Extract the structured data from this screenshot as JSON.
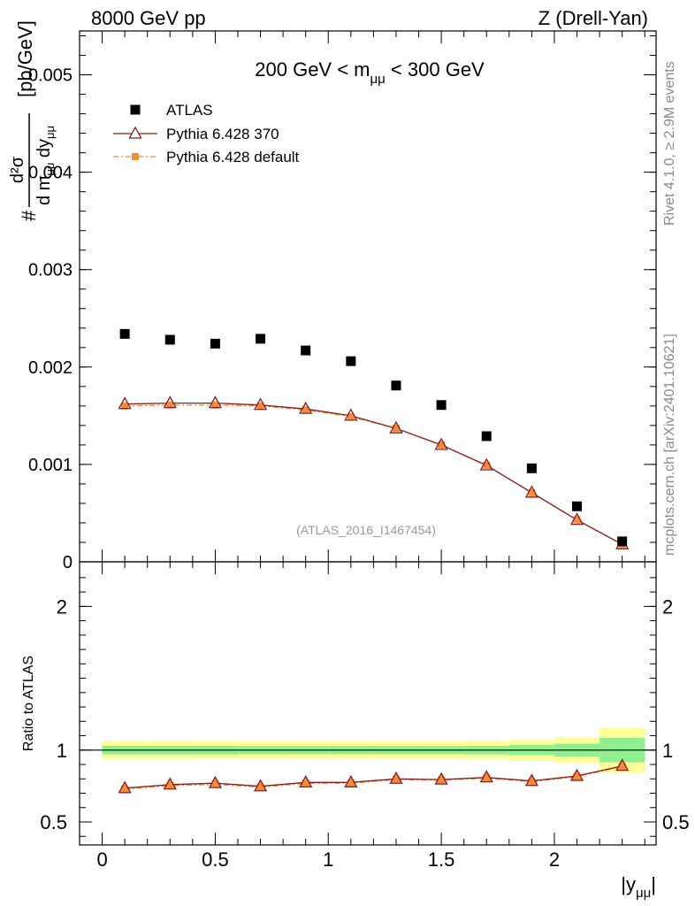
{
  "header": {
    "energy_label": "8000 GeV pp",
    "process_label": "Z (Drell-Yan)",
    "mass_range_label": "200 GeV < m",
    "mass_sub": "μμ",
    "mass_range_tail": " < 300 GeV"
  },
  "side_text": {
    "rivet": "Rivet 4.1.0, ≥ 2.9M events",
    "mcplots": "mcplots.cern.ch [arXiv:2401.10621]"
  },
  "watermark": "(ATLAS_2016_I1467454)",
  "legend": [
    {
      "label": "ATLAS",
      "color": "#000000"
    },
    {
      "label": "Pythia 6.428 370",
      "color": "#8b1a1a"
    },
    {
      "label": "Pythia 6.428 default",
      "color": "#f28c38"
    }
  ],
  "y_axis_label": {
    "prefix": "#",
    "numerator": "d²σ",
    "denominator_pre": "d m",
    "denominator_sub1": "μμ",
    "denominator_mid": " dy",
    "denominator_sub2": "μμ",
    "unit": "[pb/GeV]"
  },
  "ratio_axis_label": "Ratio to ATLAS",
  "x_axis_label_main": "|y",
  "x_axis_label_sub": "μμ",
  "x_axis_label_end": "|",
  "colors": {
    "data": "#000000",
    "mc370": "#8b1a1a",
    "mcdef": "#f28c38",
    "band_green": "#90f090",
    "band_yellow": "#ffff99"
  },
  "chart_data": [
    {
      "type": "scatter",
      "title": "200 GeV < mμμ < 300 GeV",
      "xlabel": "|yμμ|",
      "ylabel": "d²σ / d mμμ dyμμ [pb/GeV]",
      "xlim": [
        -0.1,
        2.45
      ],
      "ylim": [
        0,
        0.00545
      ],
      "yticks": [
        0,
        0.001,
        0.002,
        0.003,
        0.004,
        0.005
      ],
      "ytick_labels": [
        "0",
        "0.001",
        "0.002",
        "0.003",
        "0.004",
        "0.005"
      ],
      "x": [
        0.1,
        0.3,
        0.5,
        0.7,
        0.9,
        1.1,
        1.3,
        1.5,
        1.7,
        1.9,
        2.1,
        2.3
      ],
      "bin_edges": [
        0.0,
        0.2,
        0.4,
        0.6,
        0.8,
        1.0,
        1.2,
        1.4,
        1.6,
        1.8,
        2.0,
        2.2,
        2.4
      ],
      "series": [
        {
          "name": "ATLAS",
          "values": [
            0.00234,
            0.00228,
            0.00224,
            0.00229,
            0.00217,
            0.00206,
            0.00181,
            0.00161,
            0.00129,
            0.00096,
            0.00057,
            0.00021
          ]
        },
        {
          "name": "Pythia 6.428 370",
          "values": [
            0.00162,
            0.00163,
            0.00163,
            0.00161,
            0.00157,
            0.0015,
            0.00137,
            0.0012,
            0.00099,
            0.00071,
            0.00043,
            0.00018
          ]
        },
        {
          "name": "Pythia 6.428 default",
          "values": [
            0.0016,
            0.00161,
            0.00161,
            0.0016,
            0.00156,
            0.00149,
            0.00137,
            0.0012,
            0.00099,
            0.00071,
            0.00043,
            0.00018
          ]
        }
      ]
    },
    {
      "type": "line",
      "title": "Ratio to ATLAS",
      "xlabel": "|yμμ|",
      "ylabel": "Ratio to ATLAS",
      "xlim": [
        -0.1,
        2.45
      ],
      "ylim": [
        0.34,
        2.31
      ],
      "xticks": [
        0,
        0.5,
        1,
        1.5,
        2
      ],
      "xtick_labels": [
        "0",
        "0.5",
        "1",
        "1.5",
        "2"
      ],
      "yticks": [
        0.5,
        1,
        2
      ],
      "ytick_labels": [
        "0.5",
        "1",
        "2"
      ],
      "x": [
        0.1,
        0.3,
        0.5,
        0.7,
        0.9,
        1.1,
        1.3,
        1.5,
        1.7,
        1.9,
        2.1,
        2.3
      ],
      "bin_edges": [
        0.0,
        0.2,
        0.4,
        0.6,
        0.8,
        1.0,
        1.2,
        1.4,
        1.6,
        1.8,
        2.0,
        2.2,
        2.4
      ],
      "band_green_halfwidth": [
        0.03,
        0.03,
        0.03,
        0.028,
        0.028,
        0.028,
        0.028,
        0.028,
        0.03,
        0.035,
        0.045,
        0.085
      ],
      "band_yellow_halfwidth": [
        0.065,
        0.065,
        0.063,
        0.06,
        0.06,
        0.06,
        0.06,
        0.06,
        0.065,
        0.07,
        0.09,
        0.155
      ],
      "series": [
        {
          "name": "Pythia 6.428 370",
          "values": [
            0.735,
            0.76,
            0.77,
            0.748,
            0.775,
            0.775,
            0.8,
            0.795,
            0.81,
            0.785,
            0.82,
            0.89
          ]
        },
        {
          "name": "Pythia 6.428 default",
          "values": [
            0.728,
            0.752,
            0.762,
            0.742,
            0.768,
            0.77,
            0.795,
            0.79,
            0.805,
            0.78,
            0.815,
            0.885
          ]
        }
      ]
    }
  ]
}
